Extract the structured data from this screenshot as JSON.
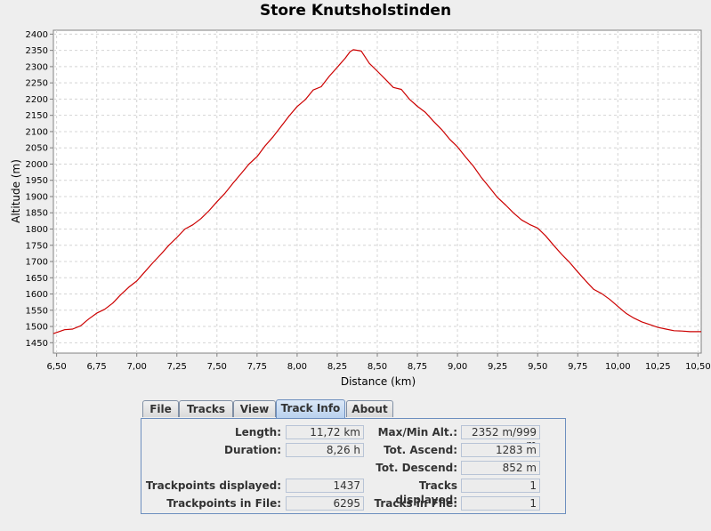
{
  "chart_data": {
    "type": "line",
    "title": "Store Knutsholstinden",
    "xlabel": "Distance (km)",
    "ylabel": "Altitude (m)",
    "xlim": [
      6.48,
      10.52
    ],
    "ylim": [
      1418,
      2412
    ],
    "x_ticks": [
      "6,50",
      "6,75",
      "7,00",
      "7,25",
      "7,50",
      "7,75",
      "8,00",
      "8,25",
      "8,50",
      "8,75",
      "9,00",
      "9,25",
      "9,50",
      "9,75",
      "10,00",
      "10,25",
      "10,50"
    ],
    "y_ticks": [
      "1450",
      "1500",
      "1550",
      "1600",
      "1650",
      "1700",
      "1750",
      "1800",
      "1850",
      "1900",
      "1950",
      "2000",
      "2050",
      "2100",
      "2150",
      "2200",
      "2250",
      "2300",
      "2350",
      "2400"
    ],
    "grid": true,
    "series": [
      {
        "color": "#cc0000",
        "x": [
          6.48,
          6.55,
          6.6,
          6.65,
          6.7,
          6.75,
          6.8,
          6.85,
          6.9,
          6.95,
          7.0,
          7.05,
          7.1,
          7.15,
          7.2,
          7.25,
          7.3,
          7.35,
          7.4,
          7.45,
          7.5,
          7.55,
          7.6,
          7.65,
          7.7,
          7.75,
          7.8,
          7.85,
          7.9,
          7.95,
          8.0,
          8.05,
          8.1,
          8.15,
          8.2,
          8.25,
          8.3,
          8.33,
          8.35,
          8.4,
          8.45,
          8.5,
          8.55,
          8.6,
          8.65,
          8.7,
          8.75,
          8.8,
          8.85,
          8.9,
          8.95,
          9.0,
          9.05,
          9.1,
          9.15,
          9.2,
          9.25,
          9.3,
          9.35,
          9.4,
          9.45,
          9.5,
          9.55,
          9.6,
          9.65,
          9.7,
          9.75,
          9.8,
          9.85,
          9.9,
          9.95,
          10.0,
          10.05,
          10.1,
          10.15,
          10.2,
          10.25,
          10.3,
          10.35,
          10.4,
          10.45,
          10.5,
          10.52
        ],
        "y": [
          1478,
          1490,
          1492,
          1502,
          1523,
          1541,
          1553,
          1572,
          1598,
          1621,
          1640,
          1668,
          1696,
          1722,
          1750,
          1774,
          1800,
          1813,
          1832,
          1856,
          1884,
          1910,
          1941,
          1970,
          2000,
          2023,
          2056,
          2084,
          2116,
          2148,
          2177,
          2198,
          2228,
          2238,
          2270,
          2298,
          2326,
          2346,
          2352,
          2348,
          2310,
          2286,
          2261,
          2236,
          2230,
          2200,
          2178,
          2159,
          2132,
          2107,
          2077,
          2053,
          2022,
          1993,
          1958,
          1928,
          1897,
          1874,
          1849,
          1828,
          1814,
          1803,
          1779,
          1750,
          1722,
          1697,
          1668,
          1640,
          1614,
          1601,
          1583,
          1562,
          1541,
          1526,
          1514,
          1506,
          1497,
          1492,
          1487,
          1486,
          1484,
          1484,
          1484
        ]
      }
    ]
  },
  "tabs": [
    {
      "label": "File"
    },
    {
      "label": "Tracks"
    },
    {
      "label": "View"
    },
    {
      "label": "Track Info"
    },
    {
      "label": "About"
    }
  ],
  "active_tab": "Track Info",
  "track_info": {
    "length_label": "Length:",
    "length_value": "11,72 km",
    "duration_label": "Duration:",
    "duration_value": "8,26 h",
    "trackpoints_displayed_label": "Trackpoints displayed:",
    "trackpoints_displayed_value": "1437",
    "trackpoints_in_file_label": "Trackpoints in File:",
    "trackpoints_in_file_value": "6295",
    "max_min_alt_label": "Max/Min Alt.:",
    "max_min_alt_value": "2352 m/999 m",
    "tot_ascend_label": "Tot. Ascend:",
    "tot_ascend_value": "1283 m",
    "tot_descend_label": "Tot. Descend:",
    "tot_descend_value": "852 m",
    "tracks_displayed_label": "Tracks displayed:",
    "tracks_displayed_value": "1",
    "tracks_in_file_label": "Tracks in File:",
    "tracks_in_file_value": "1"
  }
}
